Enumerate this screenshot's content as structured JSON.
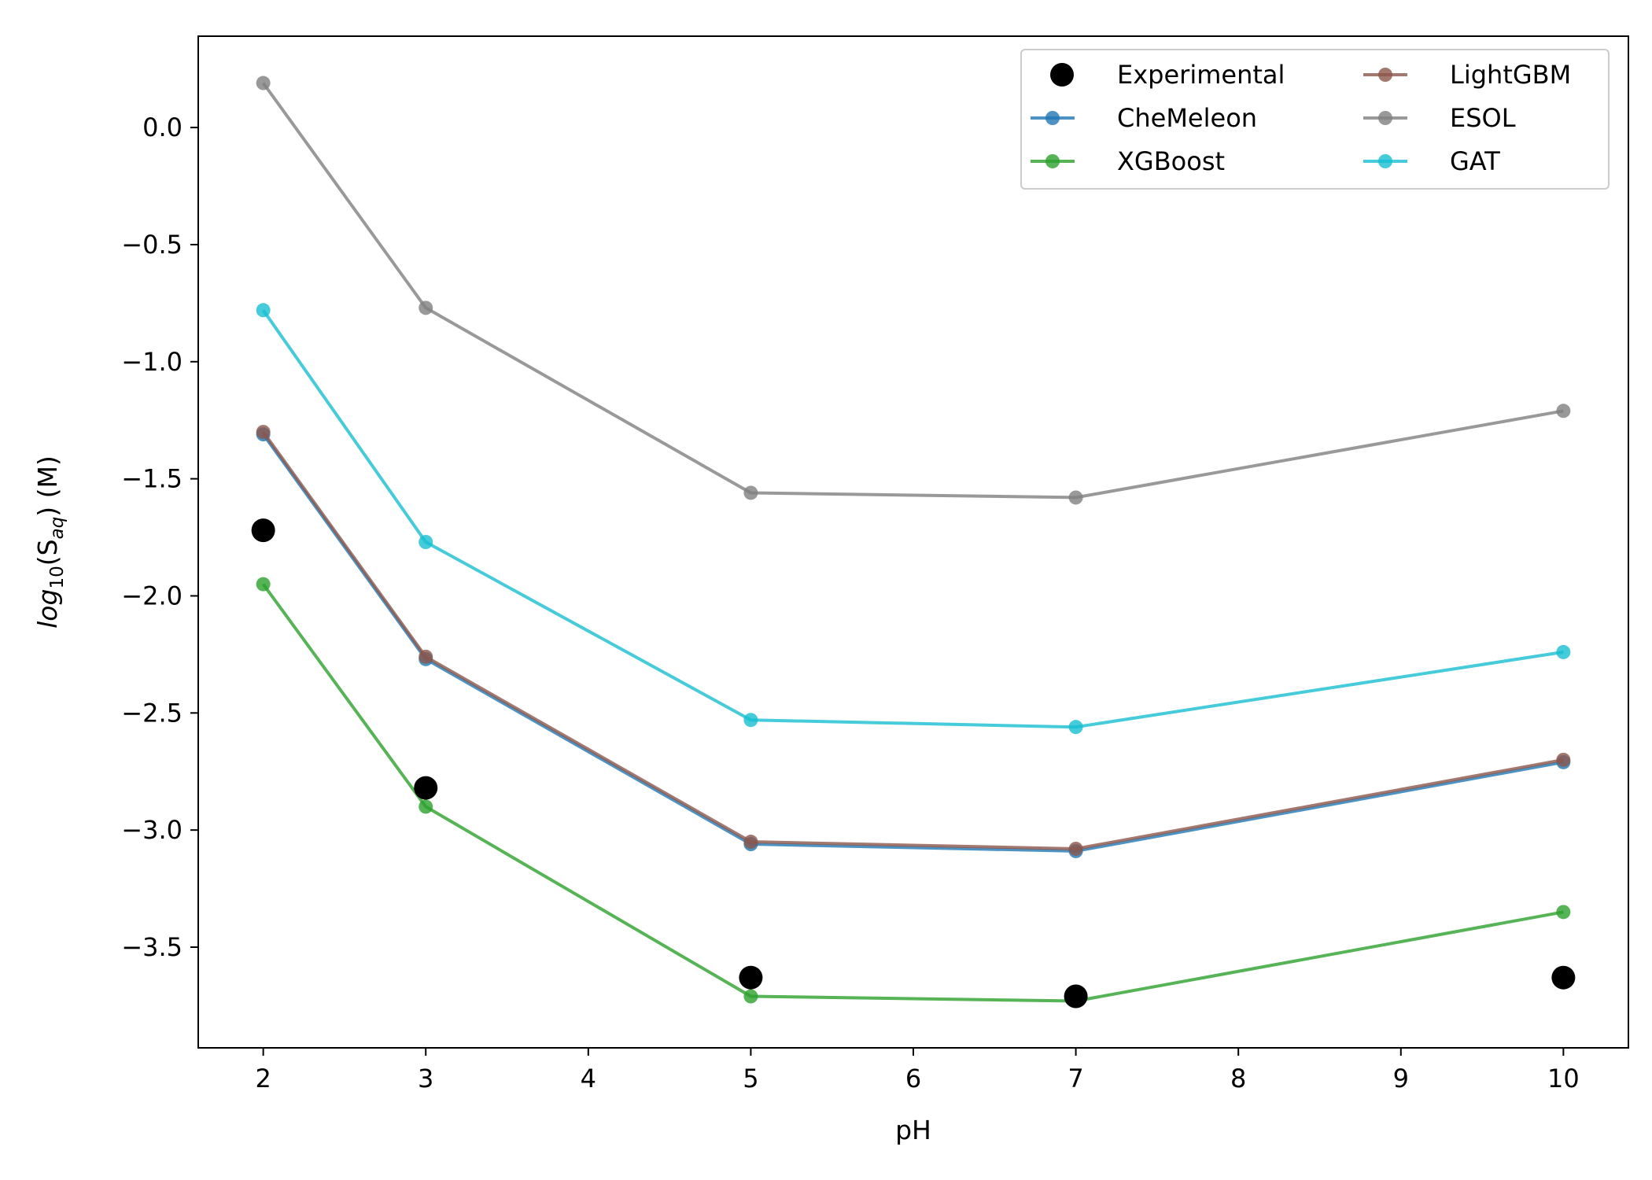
{
  "chart_data": {
    "type": "line",
    "title": "",
    "xlabel": "pH",
    "ylabel": {
      "prefix": "log",
      "sub1": "10",
      "mid": "(S",
      "sub2": "aq",
      "suffix": ") (M)"
    },
    "xlim": [
      1.6,
      10.4
    ],
    "ylim": [
      -3.93,
      0.39
    ],
    "xticks": [
      2,
      3,
      4,
      5,
      6,
      7,
      8,
      9,
      10
    ],
    "xtick_labels": [
      "2",
      "3",
      "4",
      "5",
      "6",
      "7",
      "8",
      "9",
      "10"
    ],
    "yticks": [
      0.0,
      -0.5,
      -1.0,
      -1.5,
      -2.0,
      -2.5,
      -3.0,
      -3.5
    ],
    "ytick_labels": [
      "0.0",
      "−0.5",
      "−1.0",
      "−1.5",
      "−2.0",
      "−2.5",
      "−3.0",
      "−3.5"
    ],
    "grid": false,
    "legend_position": "top-right",
    "legend_columns": 2,
    "x": [
      2,
      3,
      5,
      7,
      10
    ],
    "series": [
      {
        "name": "Experimental",
        "style": "scatter",
        "color": "#000000",
        "values": [
          -1.72,
          -2.82,
          -3.63,
          -3.71,
          -3.63
        ]
      },
      {
        "name": "CheMeleon",
        "style": "line",
        "color": "#1f77b4",
        "values": [
          -1.31,
          -2.27,
          -3.06,
          -3.09,
          -2.71
        ]
      },
      {
        "name": "XGBoost",
        "style": "line",
        "color": "#2ca02c",
        "values": [
          -1.95,
          -2.9,
          -3.71,
          -3.73,
          -3.35
        ]
      },
      {
        "name": "LightGBM",
        "style": "line",
        "color": "#8c564b",
        "values": [
          -1.3,
          -2.26,
          -3.05,
          -3.08,
          -2.7
        ]
      },
      {
        "name": "ESOL",
        "style": "line",
        "color": "#7f7f7f",
        "values": [
          0.19,
          -0.77,
          -1.56,
          -1.58,
          -1.21
        ]
      },
      {
        "name": "GAT",
        "style": "line",
        "color": "#17becf",
        "values": [
          -0.78,
          -1.77,
          -2.53,
          -2.56,
          -2.24
        ]
      }
    ]
  }
}
